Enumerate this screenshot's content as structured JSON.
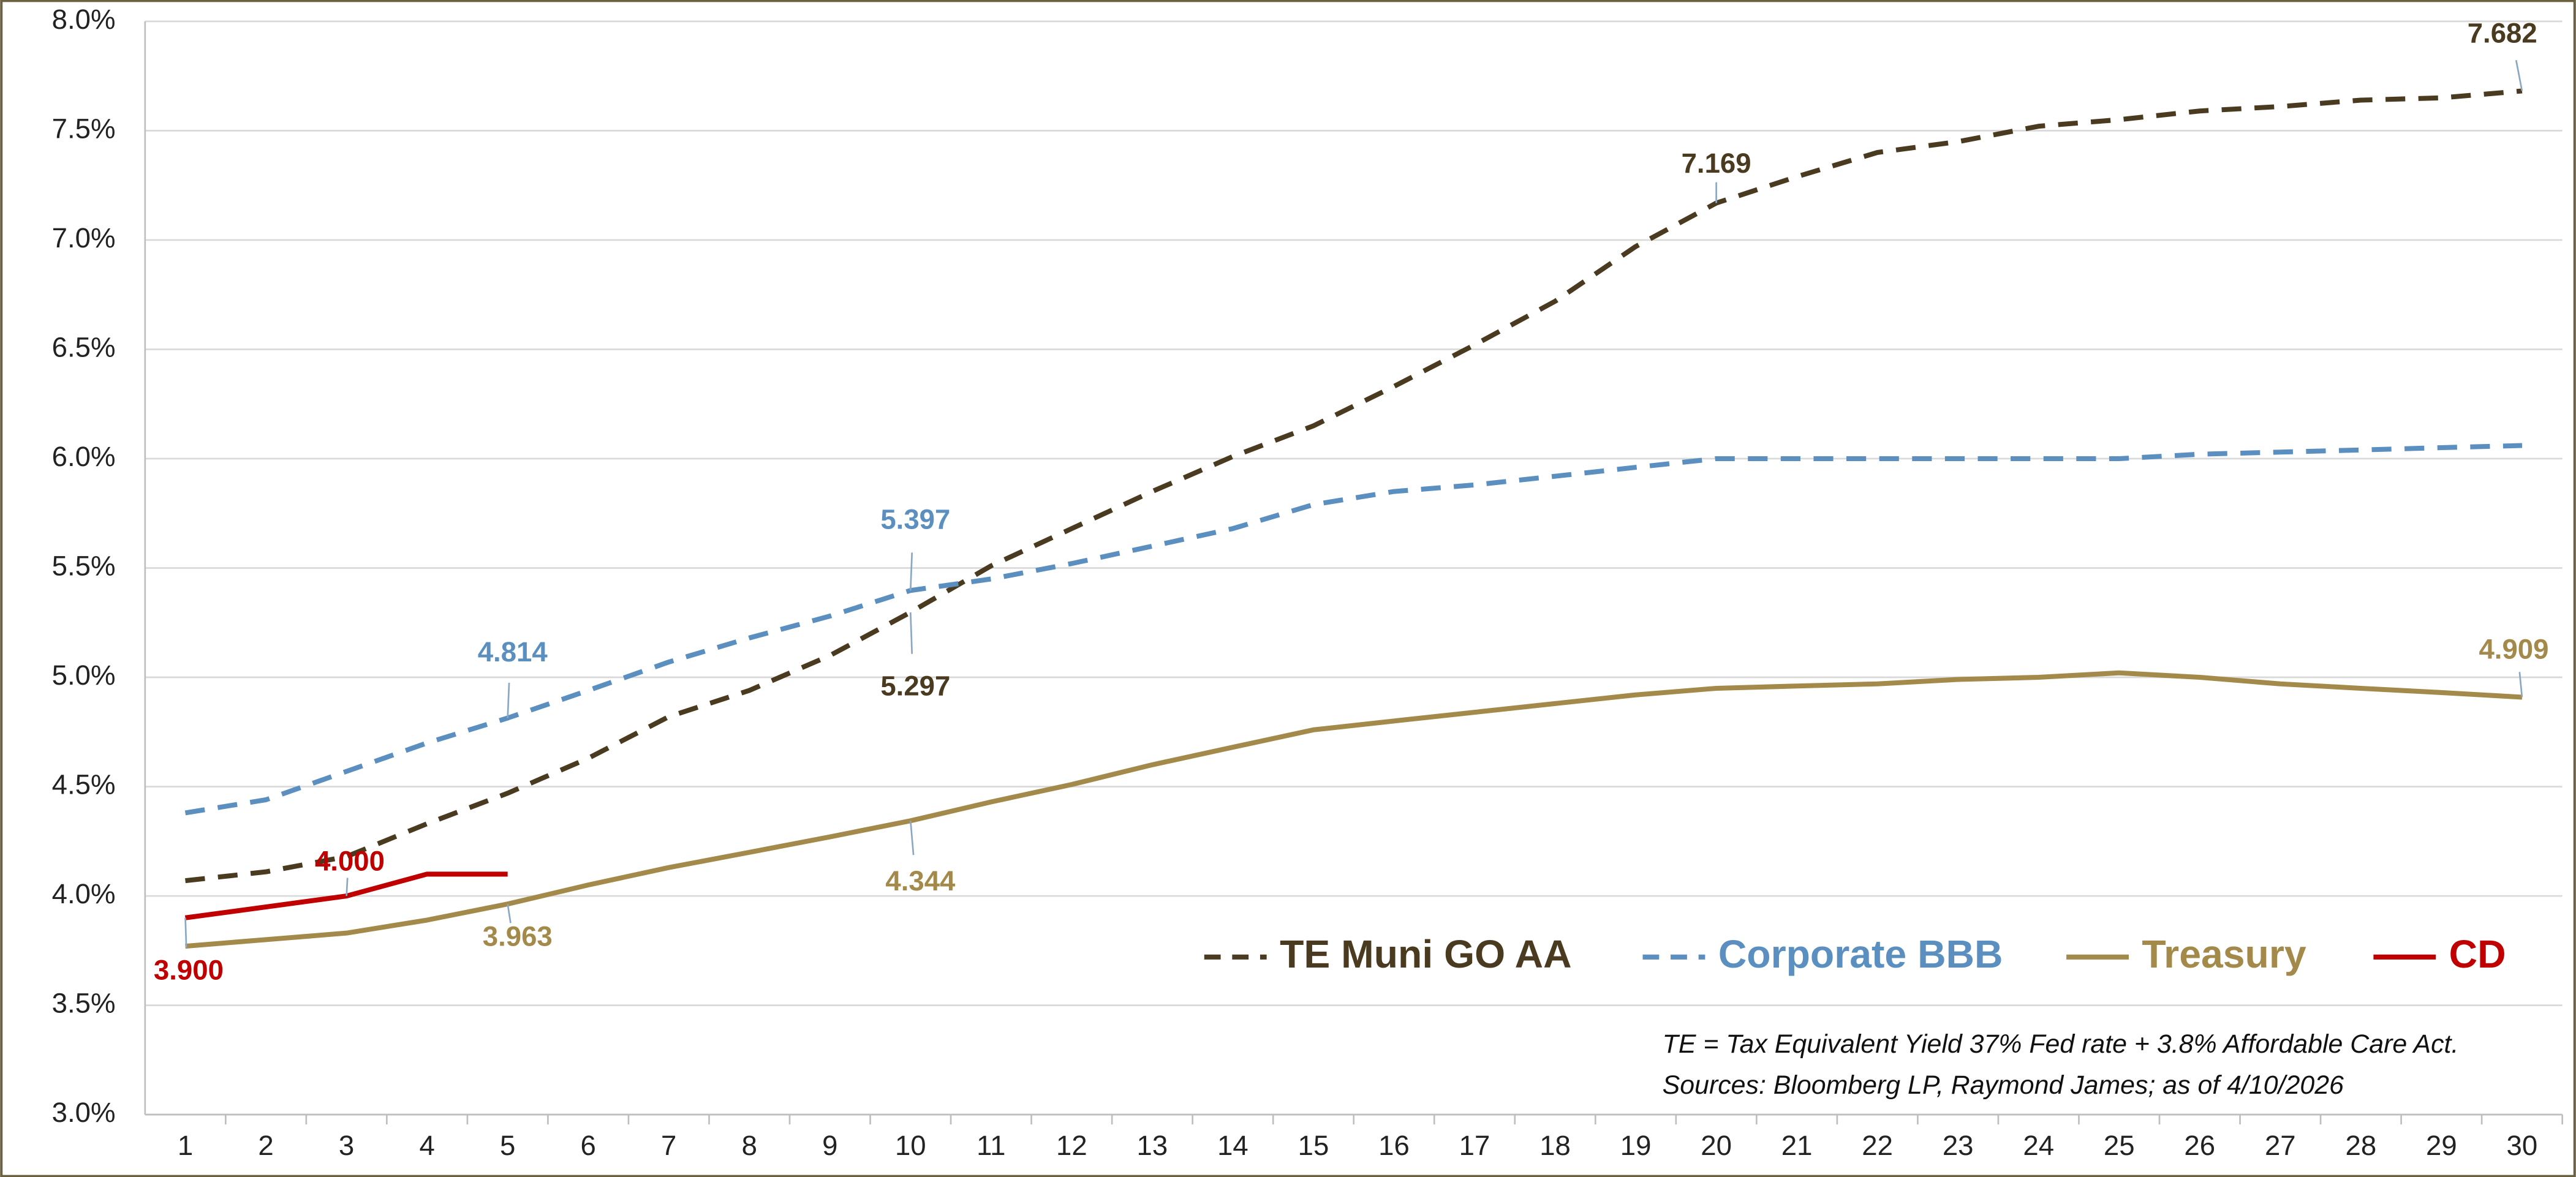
{
  "chart_data": {
    "type": "line",
    "categories": [
      "1",
      "2",
      "3",
      "4",
      "5",
      "6",
      "7",
      "8",
      "9",
      "10",
      "11",
      "12",
      "13",
      "14",
      "15",
      "16",
      "17",
      "18",
      "19",
      "20",
      "21",
      "22",
      "23",
      "24",
      "25",
      "26",
      "27",
      "28",
      "29",
      "30"
    ],
    "ylim": [
      3.0,
      8.0
    ],
    "yticks": [
      {
        "value": 3.0,
        "label": "3.0%"
      },
      {
        "value": 3.5,
        "label": "3.5%"
      },
      {
        "value": 4.0,
        "label": "4.0%"
      },
      {
        "value": 4.5,
        "label": "4.5%"
      },
      {
        "value": 5.0,
        "label": "5.0%"
      },
      {
        "value": 5.5,
        "label": "5.5%"
      },
      {
        "value": 6.0,
        "label": "6.0%"
      },
      {
        "value": 6.5,
        "label": "6.5%"
      },
      {
        "value": 7.0,
        "label": "7.0%"
      },
      {
        "value": 7.5,
        "label": "7.5%"
      },
      {
        "value": 8.0,
        "label": "8.0%"
      }
    ],
    "grid": true,
    "series": [
      {
        "name": "TE Muni GO AA",
        "color": "#4a3b20",
        "dashed": true,
        "values": [
          4.07,
          4.11,
          4.18,
          4.33,
          4.47,
          4.63,
          4.82,
          4.94,
          5.1,
          5.297,
          5.51,
          5.68,
          5.85,
          6.01,
          6.15,
          6.33,
          6.52,
          6.72,
          6.97,
          7.169,
          7.29,
          7.4,
          7.45,
          7.52,
          7.55,
          7.59,
          7.61,
          7.64,
          7.65,
          7.682
        ],
        "value_labels": [
          null,
          null,
          null,
          null,
          null,
          null,
          null,
          null,
          null,
          "5.297",
          null,
          null,
          null,
          null,
          null,
          null,
          null,
          null,
          null,
          "7.169",
          null,
          null,
          null,
          null,
          null,
          null,
          null,
          null,
          null,
          "7.682"
        ]
      },
      {
        "name": "Corporate BBB",
        "color": "#5b8fbf",
        "dashed": true,
        "values": [
          4.38,
          4.44,
          4.57,
          4.7,
          4.814,
          4.94,
          5.07,
          5.18,
          5.28,
          5.397,
          5.45,
          5.52,
          5.6,
          5.68,
          5.79,
          5.85,
          5.88,
          5.92,
          5.96,
          6.0,
          6.0,
          6.0,
          6.0,
          6.0,
          6.0,
          6.02,
          6.03,
          6.04,
          6.05,
          6.06
        ],
        "value_labels": [
          null,
          null,
          null,
          null,
          "4.814",
          null,
          null,
          null,
          null,
          "5.397",
          null,
          null,
          null,
          null,
          null,
          null,
          null,
          null,
          null,
          null,
          null,
          null,
          null,
          null,
          null,
          null,
          null,
          null,
          null,
          null
        ]
      },
      {
        "name": "Treasury",
        "color": "#a38a4a",
        "dashed": false,
        "values": [
          3.77,
          3.8,
          3.83,
          3.89,
          3.963,
          4.05,
          4.13,
          4.2,
          4.27,
          4.344,
          4.43,
          4.51,
          4.6,
          4.68,
          4.76,
          4.8,
          4.84,
          4.88,
          4.92,
          4.95,
          4.96,
          4.97,
          4.99,
          5.0,
          5.02,
          5.0,
          4.97,
          4.95,
          4.93,
          4.909
        ],
        "value_labels": [
          null,
          null,
          null,
          null,
          "3.963",
          null,
          null,
          null,
          null,
          "4.344",
          null,
          null,
          null,
          null,
          null,
          null,
          null,
          null,
          null,
          null,
          null,
          null,
          null,
          null,
          null,
          null,
          null,
          null,
          null,
          "4.909"
        ]
      },
      {
        "name": "CD",
        "color": "#c00000",
        "dashed": false,
        "values": [
          3.9,
          3.95,
          4.0,
          4.1,
          4.1,
          null,
          null,
          null,
          null,
          null,
          null,
          null,
          null,
          null,
          null,
          null,
          null,
          null,
          null,
          null,
          null,
          null,
          null,
          null,
          null,
          null,
          null,
          null,
          null,
          null
        ],
        "value_labels": [
          "3.900",
          null,
          "4.000",
          null,
          null,
          null,
          null,
          null,
          null,
          null,
          null,
          null,
          null,
          null,
          null,
          null,
          null,
          null,
          null,
          null,
          null,
          null,
          null,
          null,
          null,
          null,
          null,
          null,
          null,
          null
        ]
      }
    ],
    "annotations": [
      "TE = Tax Equivalent Yield 37%  Fed rate + 3.8% Affordable Care Act.",
      "Sources: Bloomberg LP, Raymond James; as of  4/10/2026"
    ]
  }
}
